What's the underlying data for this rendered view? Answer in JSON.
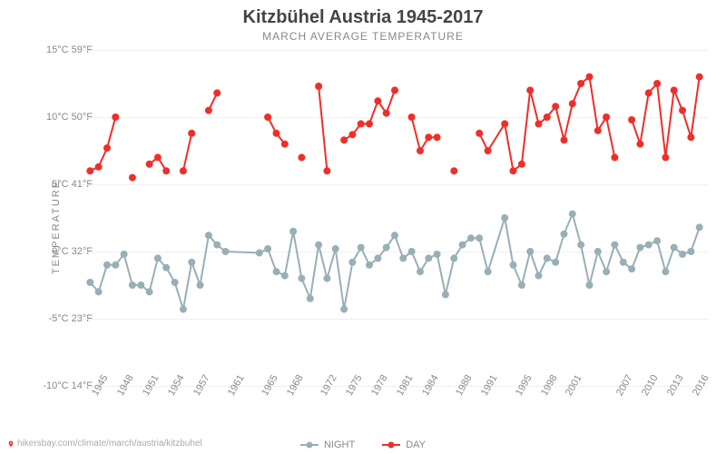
{
  "title": "Kitzbühel Austria 1945-2017",
  "subtitle": "MARCH AVERAGE TEMPERATURE",
  "ylabel": "TEMPERATURE",
  "attribution": "hikersbay.com/climate/march/austria/kitzbuhel",
  "chart": {
    "type": "line",
    "background_color": "#ffffff",
    "grid_color": "#f0f0f0",
    "axis_text_color": "#888888",
    "title_fontsize": 20,
    "subtitle_fontsize": 12,
    "label_fontsize": 11,
    "line_width": 2,
    "marker_size": 4,
    "ylim": [
      -10,
      15
    ],
    "yticks": [
      {
        "c": "-10°C",
        "f": "14°F",
        "v": -10
      },
      {
        "c": "-5°C",
        "f": "23°F",
        "v": -5
      },
      {
        "c": "0°C",
        "f": "32°F",
        "v": 0
      },
      {
        "c": "5°C",
        "f": "41°F",
        "v": 5
      },
      {
        "c": "10°C",
        "f": "50°F",
        "v": 10
      },
      {
        "c": "15°C",
        "f": "59°F",
        "v": 15
      }
    ],
    "xticks": [
      1945,
      1948,
      1951,
      1954,
      1957,
      1961,
      1965,
      1968,
      1972,
      1975,
      1978,
      1981,
      1984,
      1988,
      1991,
      1995,
      1998,
      2001,
      2007,
      2010,
      2013,
      2016
    ],
    "xlim": [
      1944,
      2018
    ],
    "years": [
      1945,
      1946,
      1947,
      1948,
      1949,
      1950,
      1951,
      1952,
      1953,
      1954,
      1955,
      1956,
      1957,
      1958,
      1959,
      1960,
      1961,
      1965,
      1966,
      1967,
      1968,
      1969,
      1970,
      1971,
      1972,
      1973,
      1974,
      1975,
      1976,
      1977,
      1978,
      1979,
      1980,
      1981,
      1982,
      1983,
      1984,
      1985,
      1986,
      1987,
      1988,
      1989,
      1990,
      1991,
      1992,
      1994,
      1995,
      1996,
      1997,
      1998,
      1999,
      2000,
      2001,
      2002,
      2003,
      2004,
      2005,
      2006,
      2007,
      2008,
      2009,
      2010,
      2011,
      2012,
      2013,
      2014,
      2015,
      2016,
      2017
    ],
    "series": {
      "day": {
        "label": "DAY",
        "color": "#ef2e2a",
        "values": [
          6.0,
          6.3,
          7.7,
          10.0,
          null,
          5.5,
          null,
          6.5,
          7.0,
          6.0,
          null,
          6.0,
          8.8,
          null,
          10.5,
          11.8,
          null,
          null,
          10.0,
          8.8,
          8.0,
          null,
          7.0,
          null,
          12.3,
          6.0,
          null,
          8.3,
          8.7,
          9.5,
          9.5,
          11.2,
          10.3,
          12.0,
          null,
          10.0,
          7.5,
          8.5,
          8.5,
          null,
          6.0,
          null,
          null,
          8.8,
          7.5,
          9.5,
          6.0,
          6.5,
          12.0,
          9.5,
          10.0,
          10.8,
          8.3,
          11.0,
          12.5,
          13.0,
          9.0,
          10.0,
          7.0,
          null,
          9.8,
          8.0,
          11.8,
          12.5,
          7.0,
          12.0,
          10.5,
          8.5,
          13.0
        ]
      },
      "night": {
        "label": "NIGHT",
        "color": "#98afb6",
        "values": [
          -2.3,
          -3.0,
          -1.0,
          -1.0,
          -0.2,
          -2.5,
          -2.5,
          -3.0,
          -0.5,
          -1.2,
          -2.3,
          -4.3,
          -0.8,
          -2.5,
          1.2,
          0.5,
          0.0,
          -0.1,
          0.2,
          -1.5,
          -1.8,
          1.5,
          -2.0,
          -3.5,
          0.5,
          -2.0,
          0.2,
          -4.3,
          -0.8,
          0.3,
          -1.0,
          -0.5,
          0.3,
          1.2,
          -0.5,
          0.0,
          -1.5,
          -0.5,
          -0.2,
          -3.2,
          -0.5,
          0.5,
          1.0,
          1.0,
          -1.5,
          2.5,
          -1.0,
          -2.5,
          0.0,
          -1.8,
          -0.5,
          -0.8,
          1.3,
          2.8,
          0.5,
          -2.5,
          0.0,
          -1.5,
          0.5,
          -0.8,
          -1.3,
          0.3,
          0.5,
          0.8,
          -1.5,
          0.3,
          -0.2,
          0.0,
          1.8
        ]
      }
    },
    "legend_items": [
      "night",
      "day"
    ]
  }
}
